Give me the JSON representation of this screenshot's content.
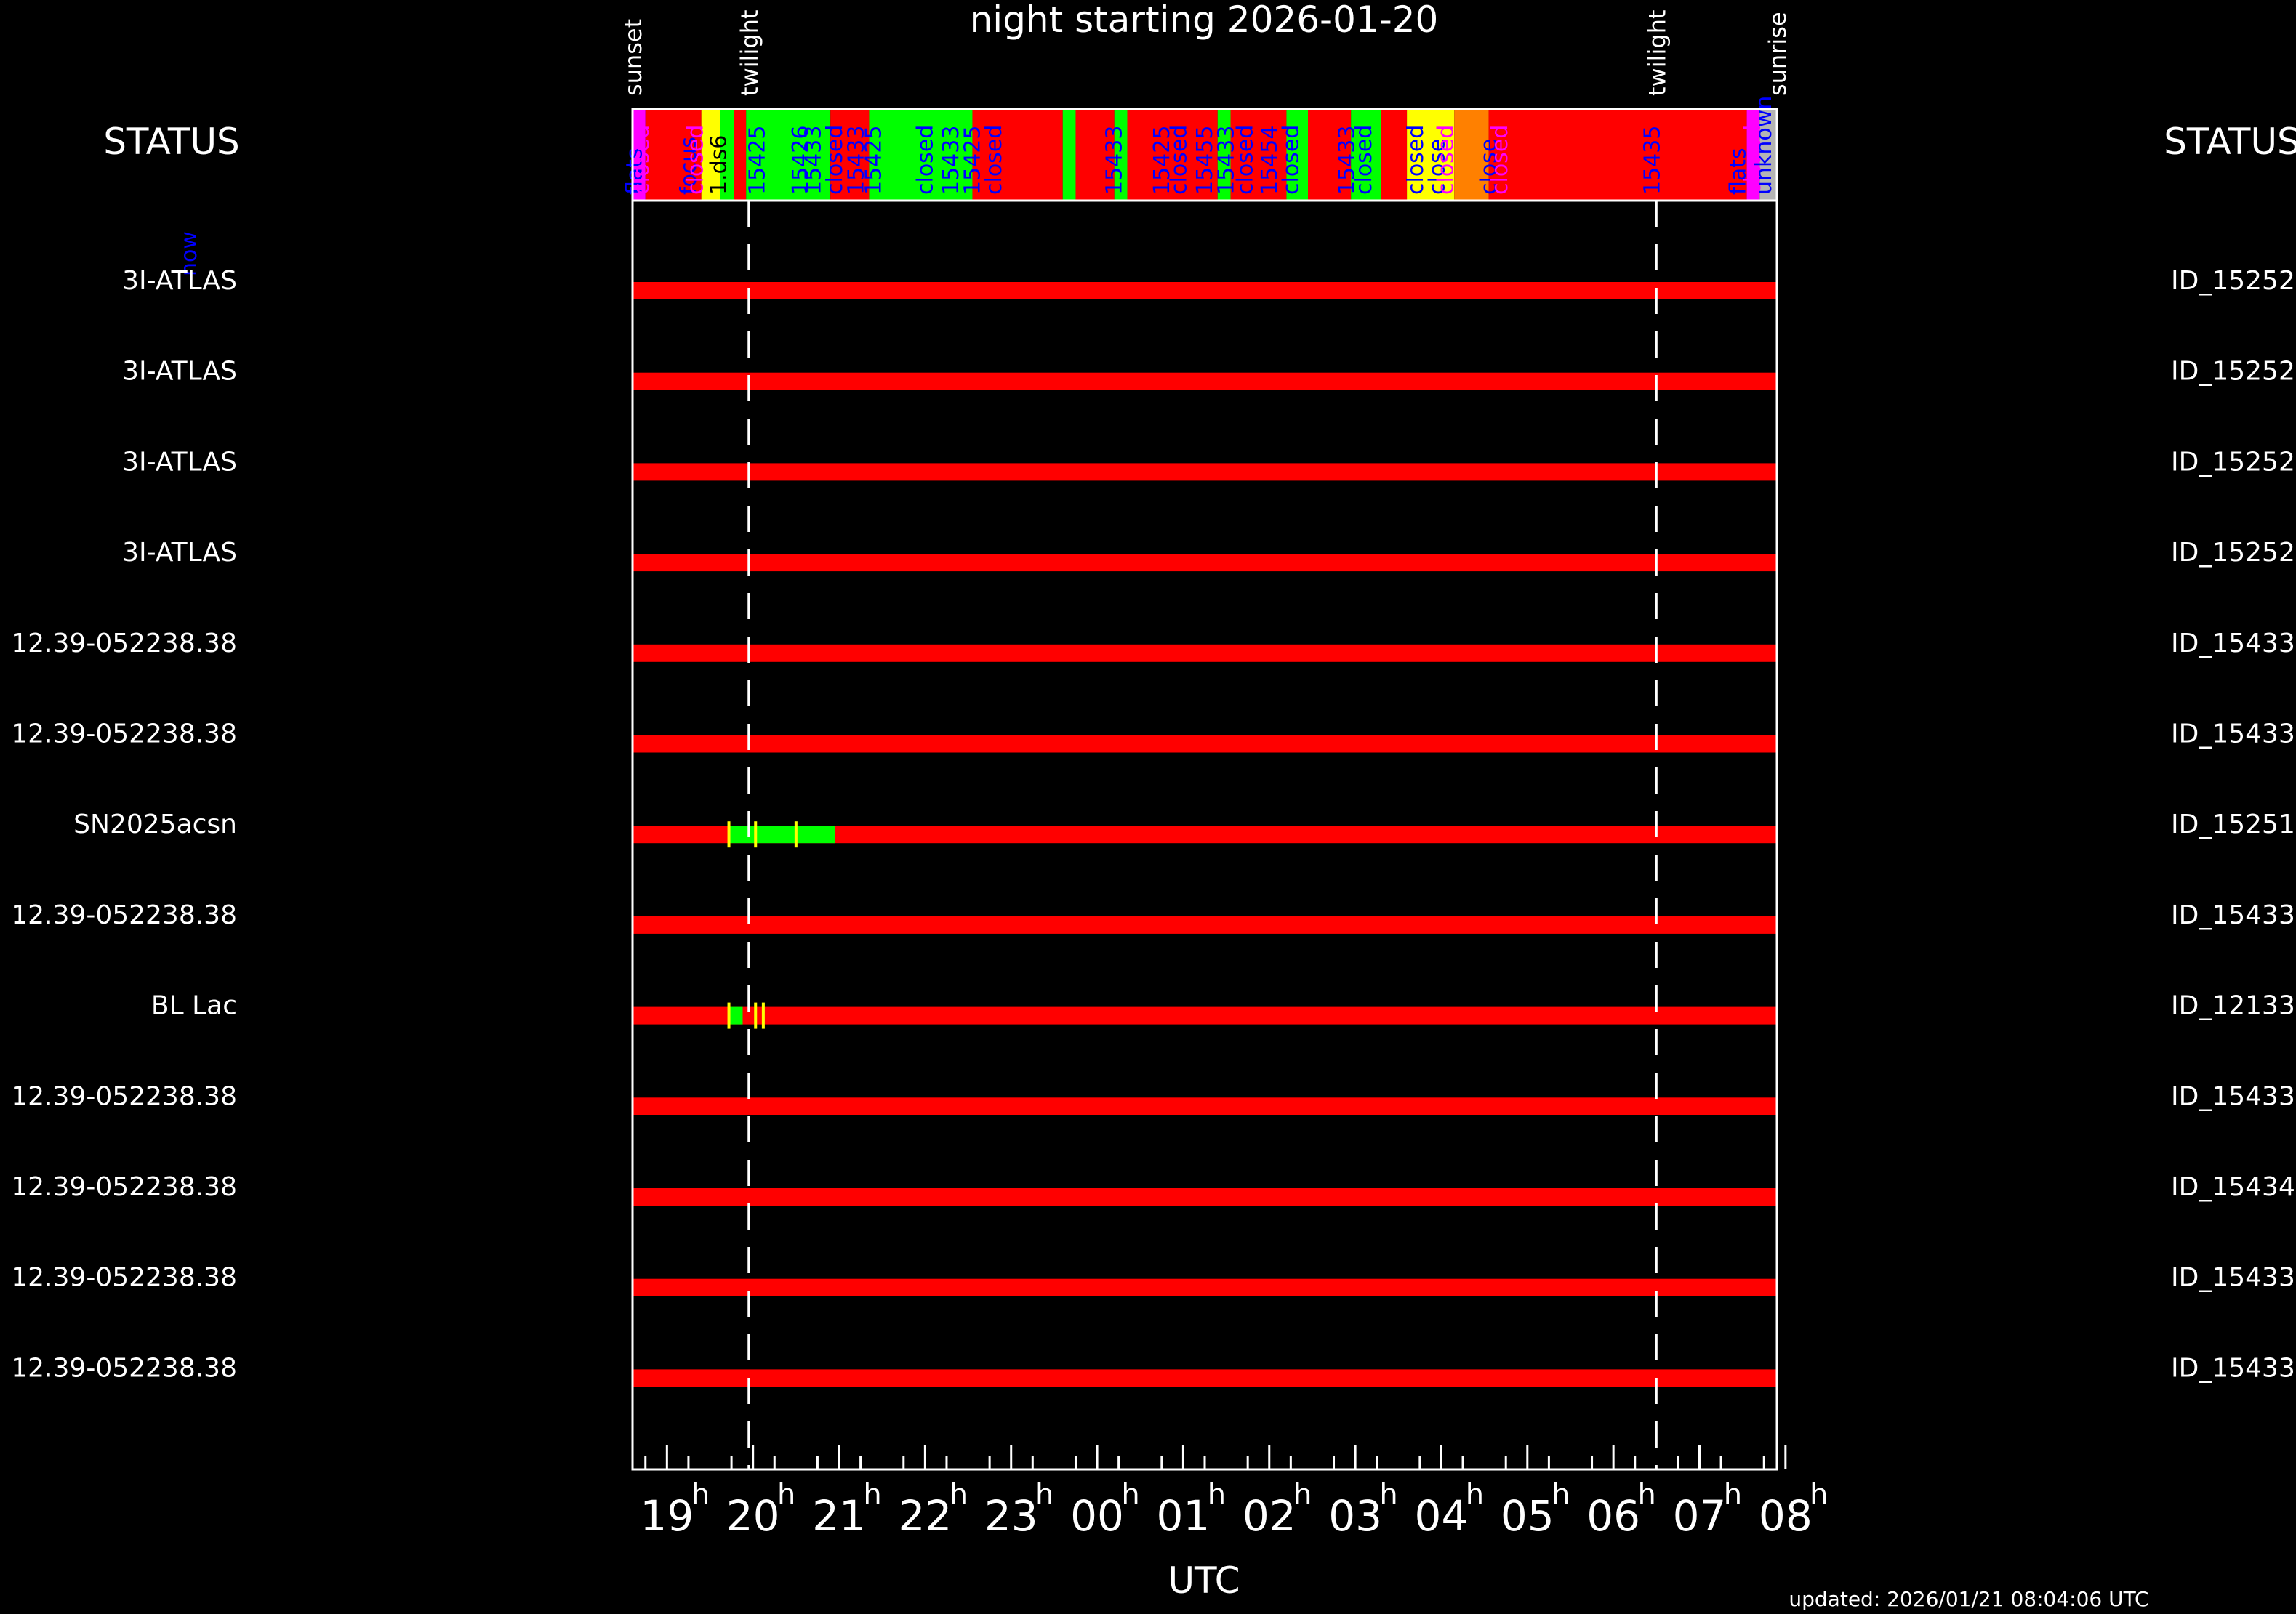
{
  "title": "night starting 2026-01-20",
  "xlabel": "UTC",
  "updated": "updated: 2026/01/21 08:04:06 UTC",
  "status_left": "STATUS",
  "status_right": "STATUS",
  "status_sub": "now",
  "colors": {
    "red": "#ff0000",
    "green": "#00ff00",
    "yellow": "#ffff00",
    "orange": "#ff8000",
    "magenta": "#ff00ff",
    "gray": "#b4b4b4",
    "blue": "#0000ff",
    "white": "#ffffff"
  },
  "chart_data": {
    "type": "timeline",
    "x_range_hours": [
      18.6,
      31.9
    ],
    "x_ticks": [
      "19",
      "20",
      "21",
      "22",
      "23",
      "00",
      "01",
      "02",
      "03",
      "04",
      "05",
      "06",
      "07",
      "08"
    ],
    "x_tick_suffix": "h",
    "markers": [
      {
        "label": "sunset",
        "x": 18.6,
        "dashed": false
      },
      {
        "label": "twilight",
        "x": 19.95,
        "dashed": true
      },
      {
        "label": "twilight",
        "x": 30.5,
        "dashed": true
      },
      {
        "label": "sunrise",
        "x": 31.9,
        "dashed": false
      }
    ],
    "status_blocks": [
      {
        "from": 18.6,
        "to": 18.75,
        "color": "magenta"
      },
      {
        "from": 18.75,
        "to": 19.4,
        "color": "red"
      },
      {
        "from": 19.4,
        "to": 19.62,
        "color": "yellow"
      },
      {
        "from": 19.62,
        "to": 19.78,
        "color": "green"
      },
      {
        "from": 19.78,
        "to": 19.92,
        "color": "red"
      },
      {
        "from": 19.92,
        "to": 20.9,
        "color": "green"
      },
      {
        "from": 20.9,
        "to": 21.35,
        "color": "red"
      },
      {
        "from": 21.35,
        "to": 22.55,
        "color": "green"
      },
      {
        "from": 22.55,
        "to": 23.6,
        "color": "red"
      },
      {
        "from": 23.6,
        "to": 23.75,
        "color": "green"
      },
      {
        "from": 23.75,
        "to": 24.2,
        "color": "red"
      },
      {
        "from": 24.2,
        "to": 24.35,
        "color": "green"
      },
      {
        "from": 24.35,
        "to": 25.4,
        "color": "red"
      },
      {
        "from": 25.4,
        "to": 25.55,
        "color": "green"
      },
      {
        "from": 25.55,
        "to": 26.2,
        "color": "red"
      },
      {
        "from": 26.2,
        "to": 26.45,
        "color": "green"
      },
      {
        "from": 26.45,
        "to": 26.95,
        "color": "red"
      },
      {
        "from": 26.95,
        "to": 27.3,
        "color": "green"
      },
      {
        "from": 27.3,
        "to": 27.6,
        "color": "red"
      },
      {
        "from": 27.6,
        "to": 28.15,
        "color": "yellow"
      },
      {
        "from": 28.15,
        "to": 28.55,
        "color": "orange"
      },
      {
        "from": 28.55,
        "to": 28.75,
        "color": "red"
      },
      {
        "from": 28.75,
        "to": 31.55,
        "color": "red"
      },
      {
        "from": 31.55,
        "to": 31.7,
        "color": "magenta"
      },
      {
        "from": 31.7,
        "to": 31.9,
        "color": "gray"
      }
    ],
    "status_labels": [
      {
        "text": "flats",
        "x": 18.62,
        "color": "blue"
      },
      {
        "text": "closed",
        "x": 18.7,
        "color": "magenta"
      },
      {
        "text": "focus",
        "x": 19.25,
        "color": "blue"
      },
      {
        "text": "closed",
        "x": 19.33,
        "color": "magenta"
      },
      {
        "text": "1.ds6",
        "x": 19.6,
        "color": "black"
      },
      {
        "text": "15425",
        "x": 20.05,
        "color": "blue"
      },
      {
        "text": "15426",
        "x": 20.55,
        "color": "blue"
      },
      {
        "text": "15433",
        "x": 20.7,
        "color": "blue"
      },
      {
        "text": "closed",
        "x": 20.95,
        "color": "blue"
      },
      {
        "text": "15433",
        "x": 21.2,
        "color": "blue"
      },
      {
        "text": "15425",
        "x": 21.4,
        "color": "blue"
      },
      {
        "text": "closed",
        "x": 22.0,
        "color": "blue"
      },
      {
        "text": "15433",
        "x": 22.3,
        "color": "blue"
      },
      {
        "text": "15425",
        "x": 22.55,
        "color": "blue"
      },
      {
        "text": "closed",
        "x": 22.8,
        "color": "blue"
      },
      {
        "text": "15433",
        "x": 24.2,
        "color": "blue"
      },
      {
        "text": "15425",
        "x": 24.75,
        "color": "blue"
      },
      {
        "text": "closed",
        "x": 24.95,
        "color": "blue"
      },
      {
        "text": "15455",
        "x": 25.25,
        "color": "blue"
      },
      {
        "text": "15433",
        "x": 25.5,
        "color": "blue"
      },
      {
        "text": "closed",
        "x": 25.72,
        "color": "blue"
      },
      {
        "text": "15454",
        "x": 26.0,
        "color": "blue"
      },
      {
        "text": "closed",
        "x": 26.25,
        "color": "blue"
      },
      {
        "text": "15433",
        "x": 26.9,
        "color": "blue"
      },
      {
        "text": "closed",
        "x": 27.1,
        "color": "blue"
      },
      {
        "text": "closed",
        "x": 27.7,
        "color": "blue"
      },
      {
        "text": "close",
        "x": 27.95,
        "color": "blue"
      },
      {
        "text": "closed",
        "x": 28.05,
        "color": "magenta"
      },
      {
        "text": "close",
        "x": 28.55,
        "color": "blue"
      },
      {
        "text": "closed",
        "x": 28.68,
        "color": "magenta"
      },
      {
        "text": "15435",
        "x": 30.45,
        "color": "blue"
      },
      {
        "text": "flats",
        "x": 31.45,
        "color": "blue"
      },
      {
        "text": "closed",
        "x": 31.62,
        "color": "magenta"
      },
      {
        "text": "unknown",
        "x": 31.75,
        "color": "blue"
      }
    ],
    "rows": [
      {
        "target": "3I-ATLAS",
        "id": "ID_15252",
        "segments": []
      },
      {
        "target": "3I-ATLAS",
        "id": "ID_15252",
        "segments": []
      },
      {
        "target": "3I-ATLAS",
        "id": "ID_15252",
        "segments": []
      },
      {
        "target": "3I-ATLAS",
        "id": "ID_15252",
        "segments": []
      },
      {
        "target": "12.39-052238.38",
        "id": "ID_15433",
        "segments": []
      },
      {
        "target": "12.39-052238.38",
        "id": "ID_15433",
        "segments": []
      },
      {
        "target": "SN2025acsn",
        "id": "ID_15251",
        "segments": [
          {
            "from": 19.72,
            "to": 20.95,
            "color": "green"
          }
        ],
        "ticks": [
          19.72,
          20.03,
          20.5
        ]
      },
      {
        "target": "12.39-052238.38",
        "id": "ID_15433",
        "segments": []
      },
      {
        "target": "BL Lac",
        "id": "ID_12133",
        "segments": [
          {
            "from": 19.72,
            "to": 19.88,
            "color": "green"
          }
        ],
        "ticks": [
          19.72,
          20.03,
          20.12
        ]
      },
      {
        "target": "12.39-052238.38",
        "id": "ID_15433",
        "segments": []
      },
      {
        "target": "12.39-052238.38",
        "id": "ID_15434",
        "segments": []
      },
      {
        "target": "12.39-052238.38",
        "id": "ID_15433",
        "segments": []
      },
      {
        "target": "12.39-052238.38",
        "id": "ID_15433",
        "segments": []
      }
    ]
  }
}
